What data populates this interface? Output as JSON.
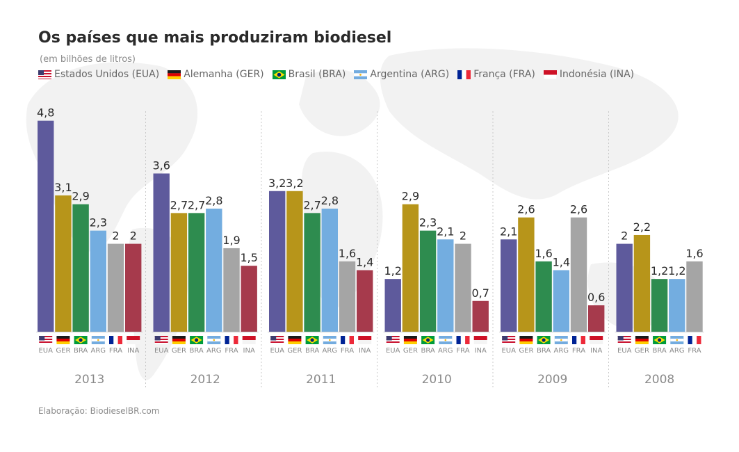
{
  "title": "Os países que mais produziram biodiesel",
  "subtitle": "(em bilhões de litros)",
  "credit": "Elaboração: BiodieselBR.com",
  "legend": [
    {
      "code": "EUA",
      "label": "Estados Unidos (EUA)",
      "icon": "usa-flag-icon"
    },
    {
      "code": "GER",
      "label": "Alemanha (GER)",
      "icon": "germany-flag-icon"
    },
    {
      "code": "BRA",
      "label": "Brasil (BRA)",
      "icon": "brazil-flag-icon"
    },
    {
      "code": "ARG",
      "label": "Argentina (ARG)",
      "icon": "argentina-flag-icon"
    },
    {
      "code": "FRA",
      "label": "França (FRA)",
      "icon": "france-flag-icon"
    },
    {
      "code": "INA",
      "label": "Indonésia (INA)",
      "icon": "indonesia-flag-icon"
    }
  ],
  "colors": {
    "EUA": "#5e5a9c",
    "GER": "#b7951a",
    "BRA": "#2e8c4f",
    "ARG": "#73ade0",
    "FRA": "#a5a5a5",
    "INA": "#a63a4c"
  },
  "chart_data": {
    "type": "bar",
    "value_unit": "bilhões de litros",
    "ylim": [
      0,
      5
    ],
    "groups": [
      {
        "year": "2013",
        "bars": [
          {
            "code": "EUA",
            "value": 4.8,
            "label": "4,8"
          },
          {
            "code": "GER",
            "value": 3.1,
            "label": "3,1"
          },
          {
            "code": "BRA",
            "value": 2.9,
            "label": "2,9"
          },
          {
            "code": "ARG",
            "value": 2.3,
            "label": "2,3"
          },
          {
            "code": "FRA",
            "value": 2.0,
            "label": "2"
          },
          {
            "code": "INA",
            "value": 2.0,
            "label": "2"
          }
        ]
      },
      {
        "year": "2012",
        "bars": [
          {
            "code": "EUA",
            "value": 3.6,
            "label": "3,6"
          },
          {
            "code": "GER",
            "value": 2.7,
            "label": "2,7"
          },
          {
            "code": "BRA",
            "value": 2.7,
            "label": "2,7"
          },
          {
            "code": "ARG",
            "value": 2.8,
            "label": "2,8"
          },
          {
            "code": "FRA",
            "value": 1.9,
            "label": "1,9"
          },
          {
            "code": "INA",
            "value": 1.5,
            "label": "1,5"
          }
        ]
      },
      {
        "year": "2011",
        "bars": [
          {
            "code": "EUA",
            "value": 3.2,
            "label": "3,2"
          },
          {
            "code": "GER",
            "value": 3.2,
            "label": "3,2"
          },
          {
            "code": "BRA",
            "value": 2.7,
            "label": "2,7"
          },
          {
            "code": "ARG",
            "value": 2.8,
            "label": "2,8"
          },
          {
            "code": "FRA",
            "value": 1.6,
            "label": "1,6"
          },
          {
            "code": "INA",
            "value": 1.4,
            "label": "1,4"
          }
        ]
      },
      {
        "year": "2010",
        "bars": [
          {
            "code": "EUA",
            "value": 1.2,
            "label": "1,2"
          },
          {
            "code": "GER",
            "value": 2.9,
            "label": "2,9"
          },
          {
            "code": "BRA",
            "value": 2.3,
            "label": "2,3"
          },
          {
            "code": "ARG",
            "value": 2.1,
            "label": "2,1"
          },
          {
            "code": "FRA",
            "value": 2.0,
            "label": "2"
          },
          {
            "code": "INA",
            "value": 0.7,
            "label": "0,7"
          }
        ]
      },
      {
        "year": "2009",
        "bars": [
          {
            "code": "EUA",
            "value": 2.1,
            "label": "2,1"
          },
          {
            "code": "GER",
            "value": 2.6,
            "label": "2,6"
          },
          {
            "code": "BRA",
            "value": 1.6,
            "label": "1,6"
          },
          {
            "code": "ARG",
            "value": 1.4,
            "label": "1,4"
          },
          {
            "code": "FRA",
            "value": 2.6,
            "label": "2,6"
          },
          {
            "code": "INA",
            "value": 0.6,
            "label": "0,6"
          }
        ]
      },
      {
        "year": "2008",
        "bars": [
          {
            "code": "EUA",
            "value": 2.0,
            "label": "2"
          },
          {
            "code": "GER",
            "value": 2.2,
            "label": "2,2"
          },
          {
            "code": "BRA",
            "value": 1.2,
            "label": "1,2"
          },
          {
            "code": "ARG",
            "value": 1.2,
            "label": "1,2"
          },
          {
            "code": "FRA",
            "value": 1.6,
            "label": "1,6"
          }
        ]
      }
    ]
  }
}
